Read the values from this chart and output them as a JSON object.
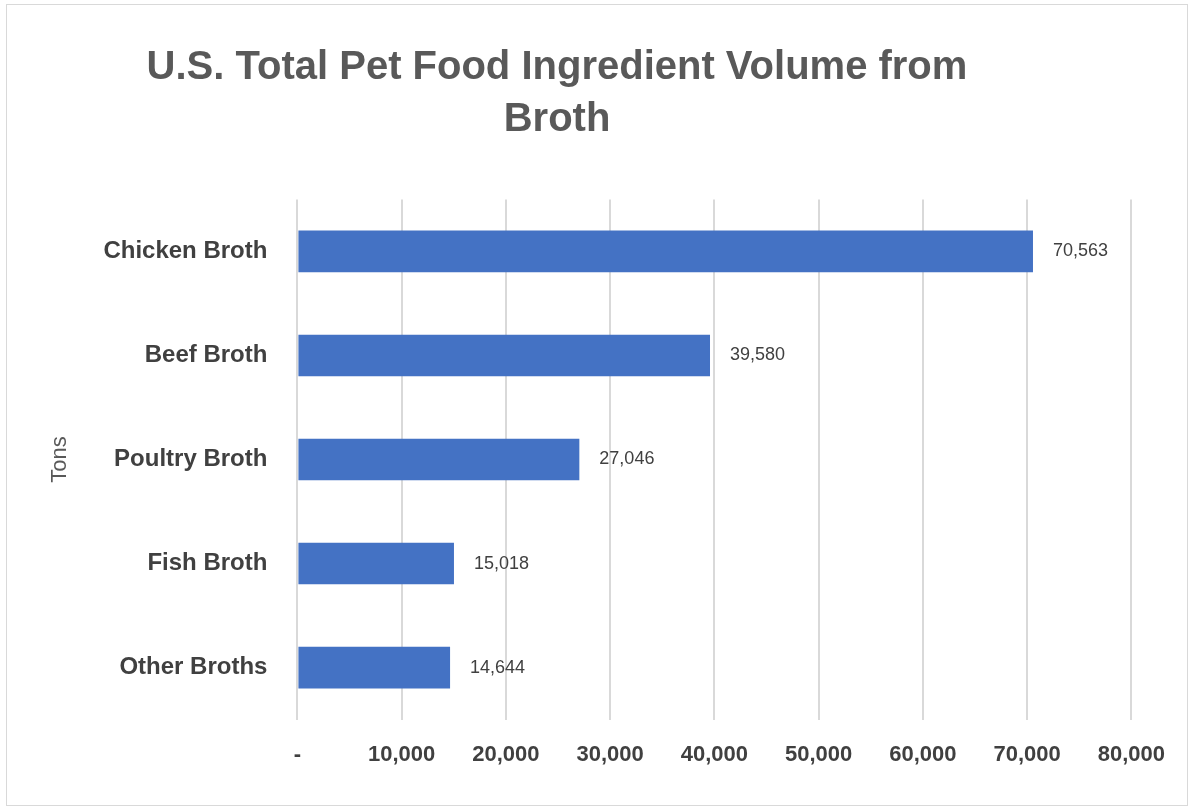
{
  "chart_data": {
    "type": "bar",
    "orientation": "horizontal",
    "title": "U.S. Total Pet Food Ingredient Volume from Broth",
    "ylabel": "Tons",
    "categories": [
      "Chicken Broth",
      "Beef Broth",
      "Poultry Broth",
      "Fish Broth",
      "Other Broths"
    ],
    "values": [
      70563,
      39580,
      27046,
      15018,
      14644
    ],
    "value_labels": [
      "70,563",
      "39,580",
      "27,046",
      "15,018",
      "14,644"
    ],
    "color": "#4472c4",
    "xlim": [
      0,
      80000
    ],
    "xticks": [
      {
        "value": 0,
        "label": "-"
      },
      {
        "value": 10000,
        "label": "10,000"
      },
      {
        "value": 20000,
        "label": "20,000"
      },
      {
        "value": 30000,
        "label": "30,000"
      },
      {
        "value": 40000,
        "label": "40,000"
      },
      {
        "value": 50000,
        "label": "50,000"
      },
      {
        "value": 60000,
        "label": "60,000"
      },
      {
        "value": 70000,
        "label": "70,000"
      },
      {
        "value": 80000,
        "label": "80,000"
      }
    ],
    "grid": "x",
    "legend": false
  }
}
